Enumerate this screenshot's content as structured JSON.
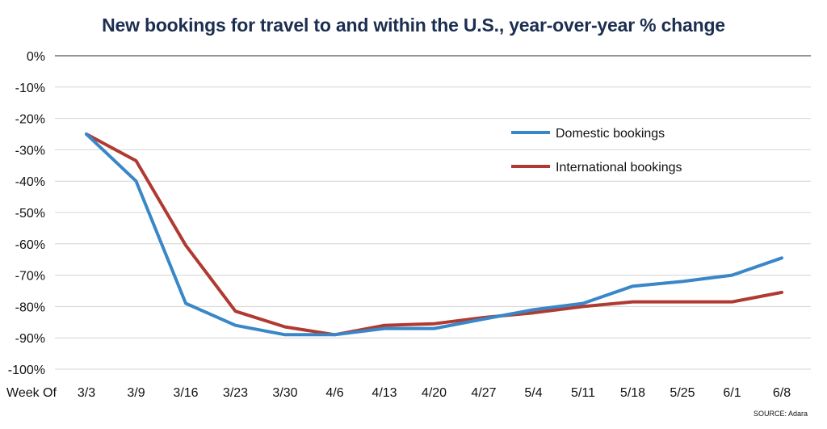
{
  "chart_data": {
    "type": "line",
    "title": "New bookings for travel to and within the U.S., year-over-year % change",
    "xlabel": "Week Of",
    "ylabel": "",
    "categories": [
      "3/3",
      "3/9",
      "3/16",
      "3/23",
      "3/30",
      "4/6",
      "4/13",
      "4/20",
      "4/27",
      "5/4",
      "5/11",
      "5/18",
      "5/25",
      "6/1",
      "6/8"
    ],
    "ylim": [
      -100,
      0
    ],
    "yticks": [
      0,
      -10,
      -20,
      -30,
      -40,
      -50,
      -60,
      -70,
      -80,
      -90,
      -100
    ],
    "grid": true,
    "legend_position": "upper-right",
    "series": [
      {
        "name": "Domestic bookings",
        "color": "#3a87c8",
        "values": [
          -25,
          -40,
          -79,
          -86,
          -89,
          -89,
          -87,
          -87,
          -84,
          -81,
          -79,
          -73.5,
          -72,
          -70,
          -64.5
        ]
      },
      {
        "name": "International bookings",
        "color": "#b03a32",
        "values": [
          -25,
          -33.5,
          -60.5,
          -81.5,
          -86.5,
          -89,
          -86,
          -85.5,
          -83.5,
          -82,
          -80,
          -78.5,
          -78.5,
          -78.5,
          -75.5
        ]
      }
    ],
    "source": "SOURCE: Adara"
  }
}
